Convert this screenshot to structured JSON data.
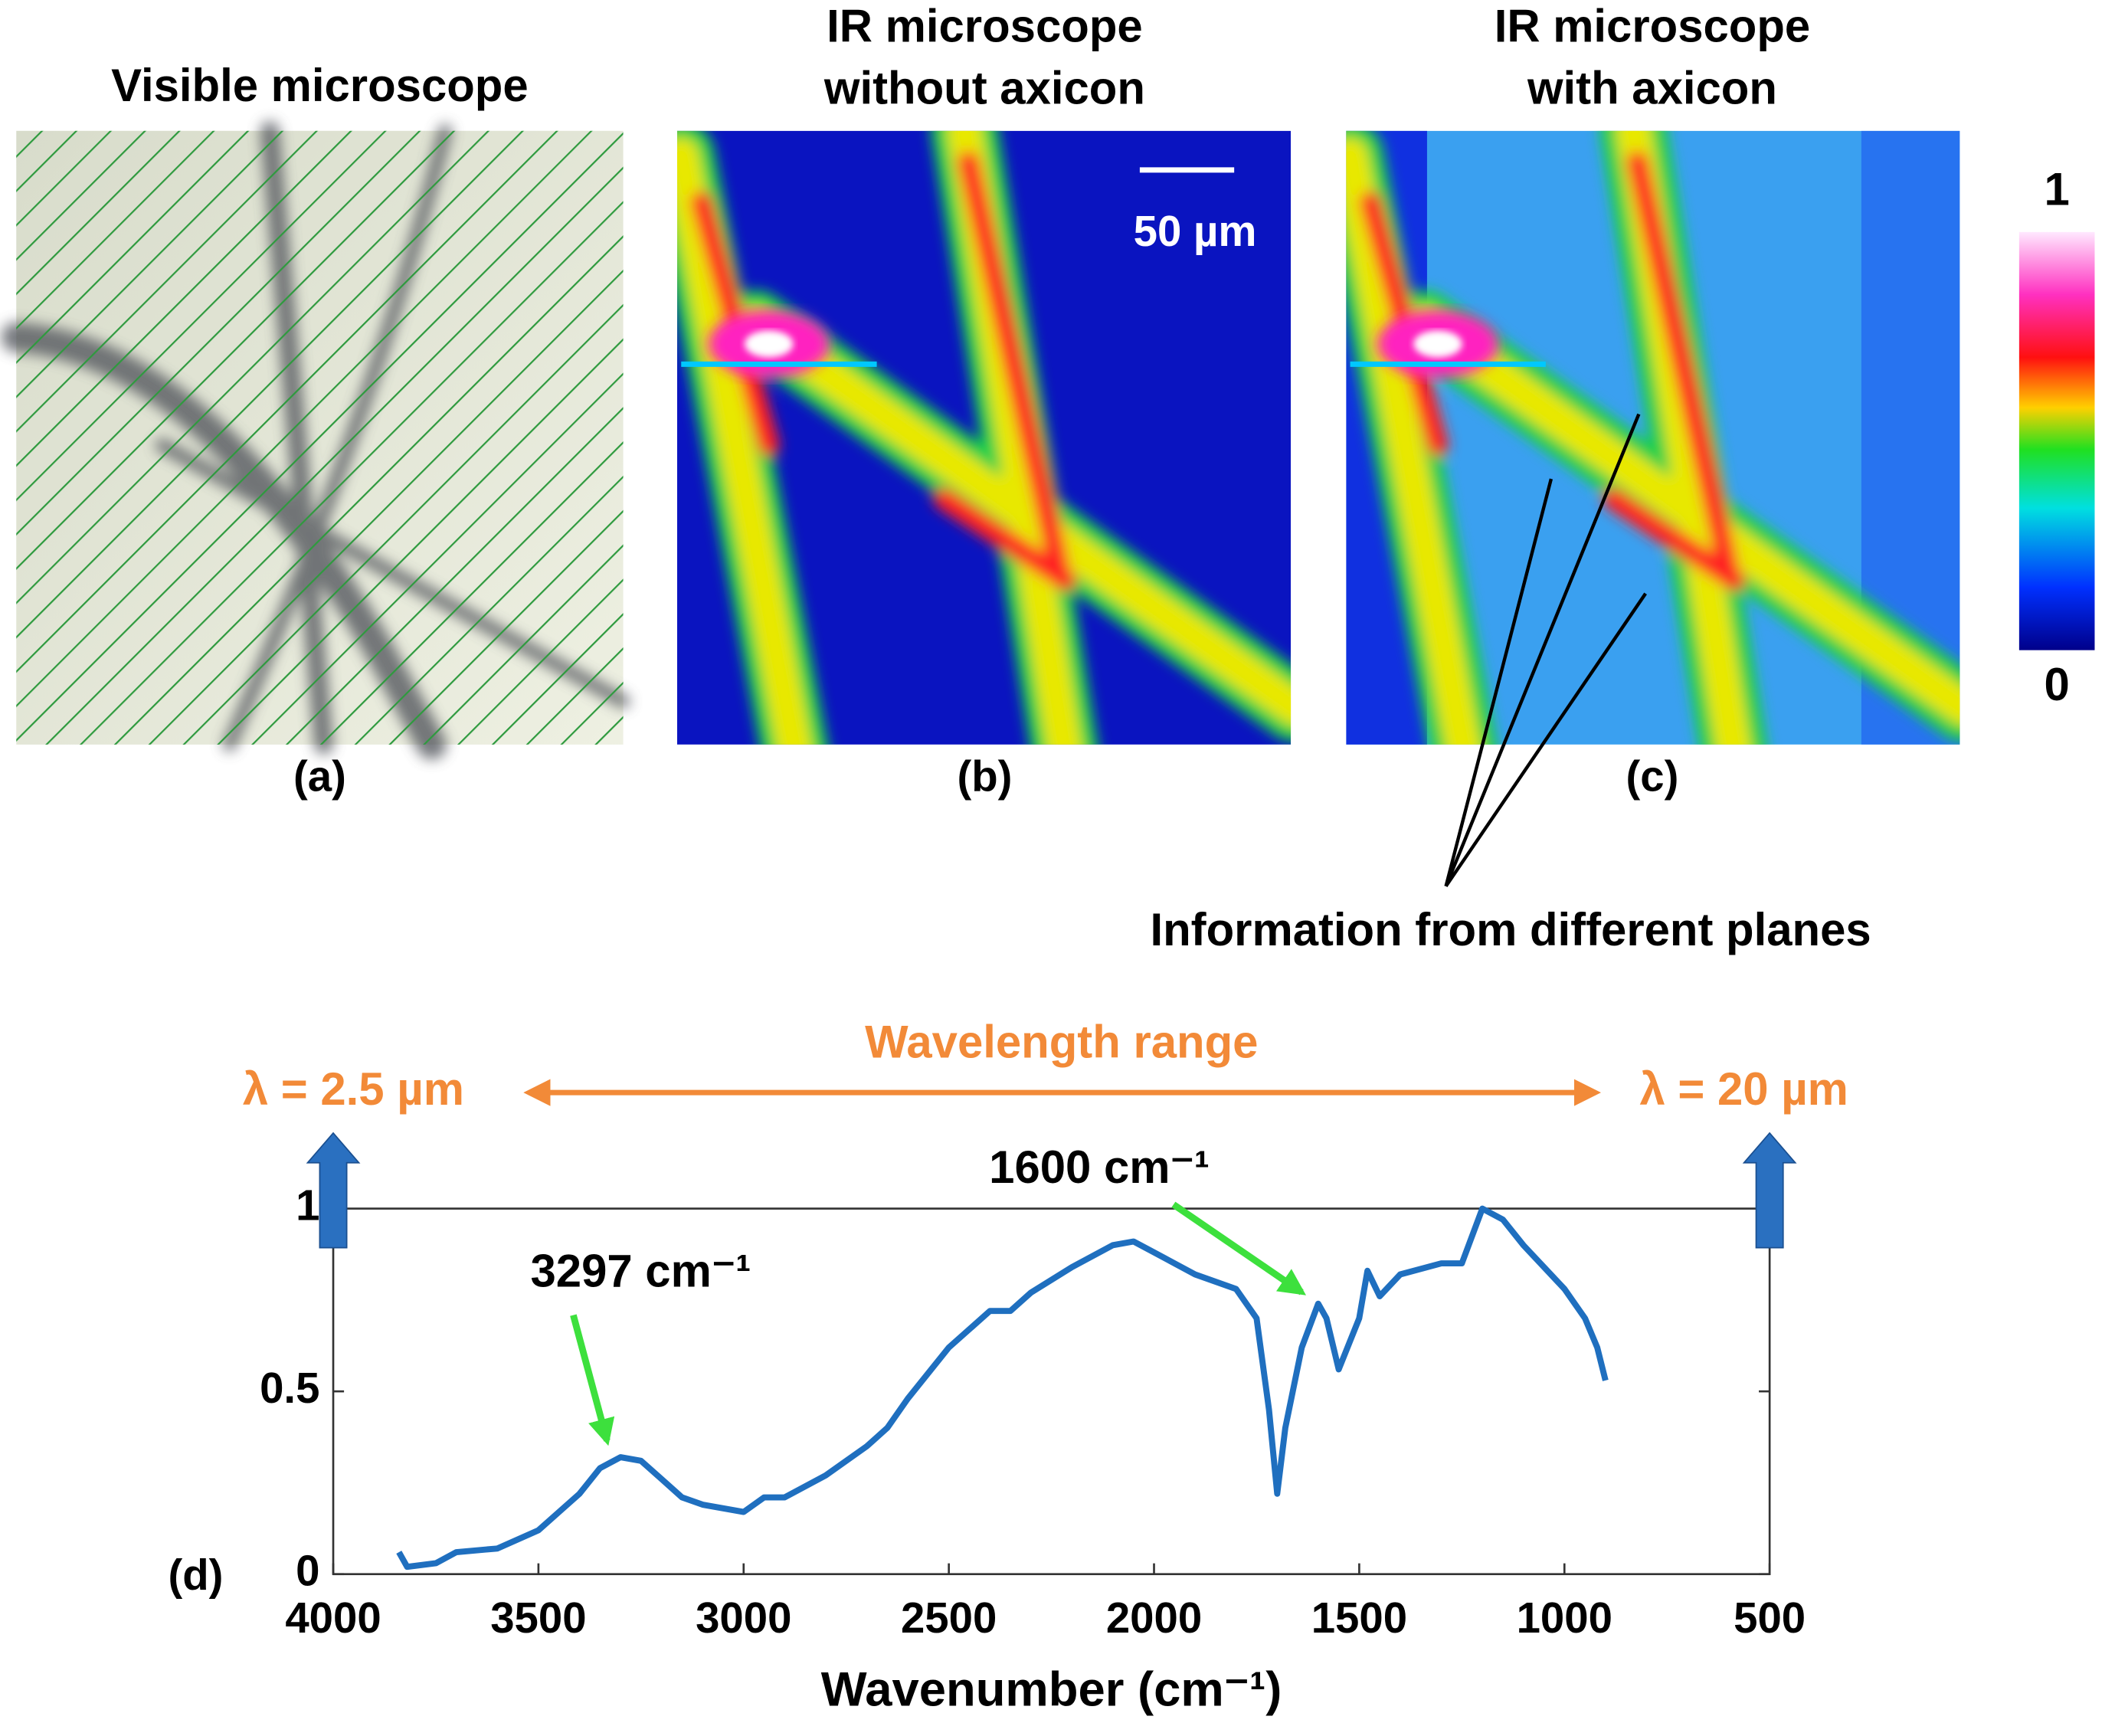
{
  "panels": [
    {
      "title": [
        "Visible microscope"
      ],
      "label": "(a)"
    },
    {
      "title": [
        "IR microscope",
        "without axicon"
      ],
      "label": "(b)"
    },
    {
      "title": [
        "IR microscope",
        "with axicon"
      ],
      "label": "(c)"
    }
  ],
  "scale_bar": "50 µm",
  "colorbar": {
    "max": 1,
    "min": 0
  },
  "callout": "Information from different planes",
  "chart_data": {
    "type": "line",
    "panel_label": "(d)",
    "x_label": "Wavenumber (cm⁻¹)",
    "range_title": "Wavelength range",
    "range_start": "λ = 2.5 µm",
    "range_end": "λ = 20 µm",
    "annotations": [
      "3297 cm⁻¹",
      "1600 cm⁻¹"
    ],
    "color": "#1f6fbf",
    "xlim": [
      4000,
      500
    ],
    "xticks": [
      4000,
      3500,
      3000,
      2500,
      2000,
      1500,
      1000,
      500
    ],
    "ylim": [
      0,
      1
    ],
    "yticks": [
      0,
      0.5,
      1
    ],
    "x": [
      3840,
      3820,
      3750,
      3700,
      3600,
      3500,
      3450,
      3400,
      3350,
      3300,
      3250,
      3200,
      3150,
      3100,
      3050,
      3000,
      2950,
      2900,
      2800,
      2700,
      2650,
      2600,
      2500,
      2400,
      2350,
      2300,
      2200,
      2100,
      2050,
      2000,
      1900,
      1800,
      1750,
      1720,
      1700,
      1680,
      1640,
      1600,
      1580,
      1550,
      1500,
      1480,
      1450,
      1400,
      1300,
      1250,
      1200,
      1150,
      1100,
      1000,
      950,
      920,
      900
    ],
    "values": [
      0.06,
      0.02,
      0.03,
      0.06,
      0.07,
      0.12,
      0.17,
      0.22,
      0.29,
      0.32,
      0.31,
      0.26,
      0.21,
      0.19,
      0.18,
      0.17,
      0.21,
      0.21,
      0.27,
      0.35,
      0.4,
      0.48,
      0.62,
      0.72,
      0.72,
      0.77,
      0.84,
      0.9,
      0.91,
      0.88,
      0.82,
      0.78,
      0.7,
      0.45,
      0.22,
      0.4,
      0.62,
      0.74,
      0.7,
      0.56,
      0.7,
      0.83,
      0.76,
      0.82,
      0.85,
      0.85,
      1.0,
      0.97,
      0.9,
      0.78,
      0.7,
      0.62,
      0.53
    ]
  }
}
